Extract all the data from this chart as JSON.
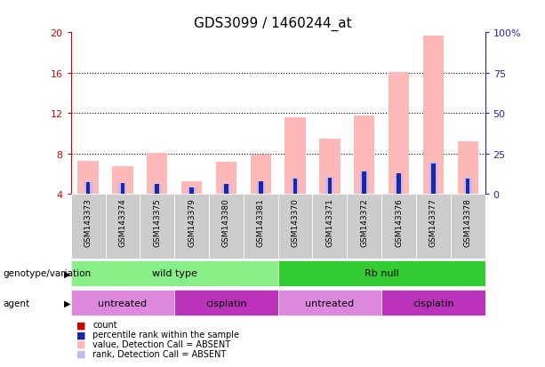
{
  "title": "GDS3099 / 1460244_at",
  "samples": [
    "GSM143373",
    "GSM143374",
    "GSM143375",
    "GSM143379",
    "GSM143380",
    "GSM143381",
    "GSM143370",
    "GSM143371",
    "GSM143372",
    "GSM143376",
    "GSM143377",
    "GSM143378"
  ],
  "pink_bar_heights": [
    7.3,
    6.8,
    8.1,
    5.3,
    7.2,
    7.9,
    11.6,
    9.5,
    11.8,
    16.1,
    19.7,
    9.2
  ],
  "blue_light_heights": [
    5.3,
    5.1,
    5.0,
    4.7,
    5.0,
    5.3,
    5.6,
    5.7,
    6.3,
    6.1,
    7.2,
    5.6
  ],
  "red_heights": [
    4.25,
    4.2,
    4.2,
    4.15,
    4.2,
    4.2,
    4.3,
    4.3,
    4.35,
    4.3,
    4.45,
    4.3
  ],
  "blue_dark_heights": [
    5.2,
    5.1,
    5.0,
    4.65,
    5.0,
    5.25,
    5.5,
    5.6,
    6.2,
    6.05,
    7.0,
    5.5
  ],
  "ylim_left": [
    4,
    20
  ],
  "ylim_right": [
    0,
    100
  ],
  "yticks_left": [
    4,
    8,
    12,
    16,
    20
  ],
  "yticks_right": [
    0,
    25,
    50,
    75,
    100
  ],
  "ytick_labels_right": [
    "0",
    "25",
    "50",
    "75",
    "100%"
  ],
  "hgrid_vals": [
    8,
    12,
    16
  ],
  "color_pink": "#FFB8B8",
  "color_blue_light": "#BBBBEE",
  "color_red": "#CC0000",
  "color_blue_dark": "#2222AA",
  "color_wildtype": "#88EE88",
  "color_rbnull": "#33CC33",
  "color_untreated": "#DD88DD",
  "color_cisplatin": "#BB33BB",
  "color_col_bg": "#CCCCCC",
  "color_axis_left": "#CC0000",
  "color_axis_right": "#2222BB",
  "bar_width": 0.6,
  "narrow_bar_width": 0.12
}
